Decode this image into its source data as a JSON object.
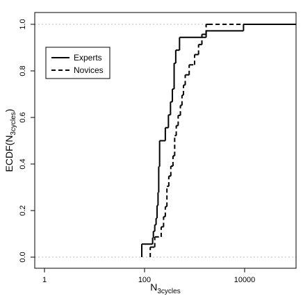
{
  "chart_data": {
    "type": "line",
    "title": "",
    "xlabel": {
      "main": "N",
      "sub": "3cycles"
    },
    "ylabel": {
      "main": "ECDF(N",
      "sub": "3cycles",
      "close": ")"
    },
    "x_scale": "log10",
    "xlim": [
      1,
      100000
    ],
    "ylim": [
      0,
      1
    ],
    "x_ticks": [
      {
        "value": 1,
        "label": "1"
      },
      {
        "value": 100,
        "label": "100"
      },
      {
        "value": 10000,
        "label": "10000"
      }
    ],
    "y_ticks": [
      {
        "value": 0.0,
        "label": "0.0"
      },
      {
        "value": 0.2,
        "label": "0.2"
      },
      {
        "value": 0.4,
        "label": "0.4"
      },
      {
        "value": 0.6,
        "label": "0.6"
      },
      {
        "value": 0.8,
        "label": "0.8"
      },
      {
        "value": 1.0,
        "label": "1.0"
      }
    ],
    "reference_lines_y": [
      0,
      1
    ],
    "legend": {
      "position": "top-left",
      "entries": [
        "Experts",
        "Novices"
      ]
    },
    "series": [
      {
        "name": "Experts",
        "line_style": "solid",
        "color": "#000000",
        "x": [
          88,
          145,
          150,
          160,
          170,
          178,
          186,
          192,
          200,
          260,
          300,
          330,
          360,
          390,
          420,
          500,
          1700,
          9500
        ],
        "y": [
          0.056,
          0.083,
          0.111,
          0.139,
          0.167,
          0.222,
          0.278,
          0.389,
          0.5,
          0.556,
          0.611,
          0.667,
          0.722,
          0.833,
          0.889,
          0.944,
          0.972,
          1.0
        ]
      },
      {
        "name": "Novices",
        "line_style": "dashed",
        "color": "#000000",
        "x": [
          130,
          160,
          215,
          240,
          260,
          280,
          305,
          335,
          370,
          400,
          430,
          470,
          520,
          560,
          600,
          650,
          780,
          1000,
          1200,
          1400,
          1700,
          1900
        ],
        "y": [
          0.043,
          0.087,
          0.13,
          0.174,
          0.217,
          0.304,
          0.348,
          0.391,
          0.435,
          0.522,
          0.565,
          0.609,
          0.652,
          0.696,
          0.739,
          0.783,
          0.826,
          0.87,
          0.913,
          0.957,
          1.0,
          1.0
        ]
      }
    ]
  }
}
